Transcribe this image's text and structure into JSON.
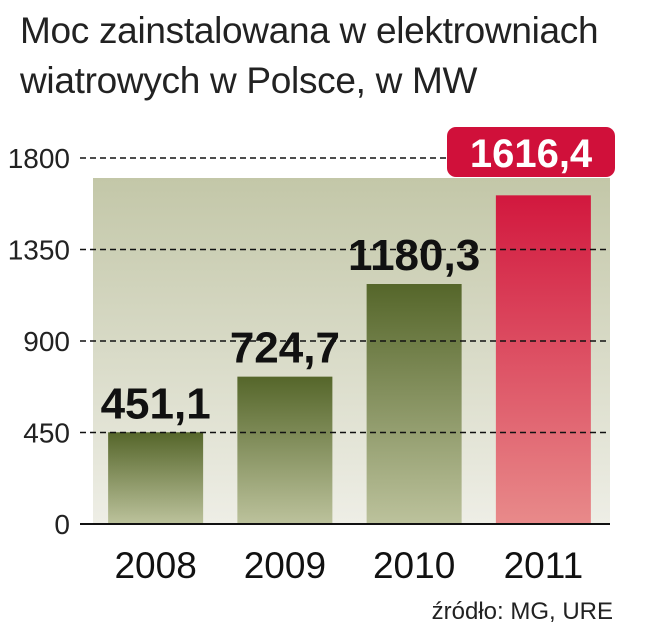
{
  "title_lines": [
    "Moc zainstalowana w elektrowniach",
    "wiatrowych w Polsce, w MW"
  ],
  "source": "źródło: MG, URE",
  "colors": {
    "bar_green_top": "#55662a",
    "bar_green_bottom": "#bcc29c",
    "bar_red_top": "#d2183e",
    "bar_red_bottom": "#e88a8a",
    "plot_bg_top": "#c3c7a8",
    "plot_bg_bottom": "#eeeee6",
    "highlight_label_bg": "#d0103a"
  },
  "chart_data": {
    "type": "bar",
    "categories": [
      "2008",
      "2009",
      "2010",
      "2011"
    ],
    "values": [
      451.1,
      724.7,
      1180.3,
      1616.4
    ],
    "value_labels": [
      "451,1",
      "724,7",
      "1180,3",
      "1616,4"
    ],
    "highlight_index": 3,
    "yticks": [
      "0",
      "450",
      "900",
      "1350",
      "1800"
    ],
    "ytick_values": [
      0,
      450,
      900,
      1350,
      1800
    ],
    "ylim": [
      0,
      1800
    ],
    "grid": "dashed horizontal",
    "xlabel": "",
    "ylabel": ""
  }
}
